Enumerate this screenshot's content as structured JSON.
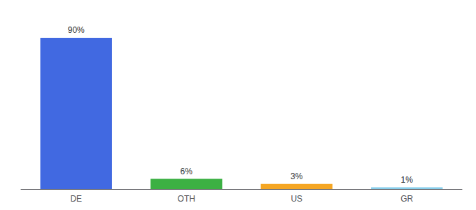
{
  "chart_data": {
    "type": "bar",
    "categories": [
      "DE",
      "OTH",
      "US",
      "GR"
    ],
    "values": [
      90,
      6,
      3,
      1
    ],
    "value_labels": [
      "90%",
      "6%",
      "3%",
      "1%"
    ],
    "colors": [
      "#4169e1",
      "#3cb043",
      "#f5a623",
      "#87ceeb"
    ],
    "ylim": [
      0,
      100
    ],
    "grid": false,
    "data_labels": true,
    "tick_labels": "x"
  }
}
